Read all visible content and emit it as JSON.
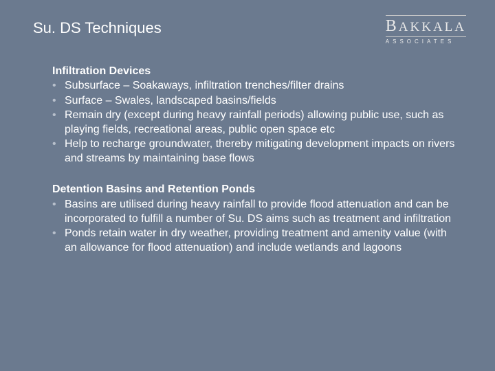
{
  "colors": {
    "background": "#6b7a8f",
    "text": "#ffffff",
    "bullet": "#b8c0cc",
    "logo": "#e8e8e8",
    "logo_rule": "#c8c8c8"
  },
  "typography": {
    "title_fontsize": 22,
    "body_fontsize": 16,
    "heading_fontsize": 16,
    "logo_main_fontsize": 19,
    "logo_sub_fontsize": 8
  },
  "header": {
    "title": "Su. DS Techniques",
    "logo": {
      "main": "BAKKALA",
      "sub": "ASSOCIATES"
    }
  },
  "sections": [
    {
      "heading": "Infiltration Devices",
      "bullets": [
        "Subsurface – Soakaways, infiltration trenches/filter drains",
        "Surface – Swales, landscaped basins/fields",
        "Remain dry (except during heavy rainfall periods) allowing public use, such as playing fields, recreational areas, public open space etc",
        "Help to recharge groundwater, thereby mitigating development impacts on rivers and streams by maintaining base flows"
      ]
    },
    {
      "heading": "Detention Basins and Retention Ponds",
      "bullets": [
        "Basins are utilised during heavy rainfall to provide flood attenuation and can be incorporated to fulfill a number of Su. DS aims such as treatment and infiltration",
        "Ponds retain water in dry weather, providing treatment and amenity value (with an allowance for flood attenuation) and include wetlands and lagoons"
      ]
    }
  ]
}
